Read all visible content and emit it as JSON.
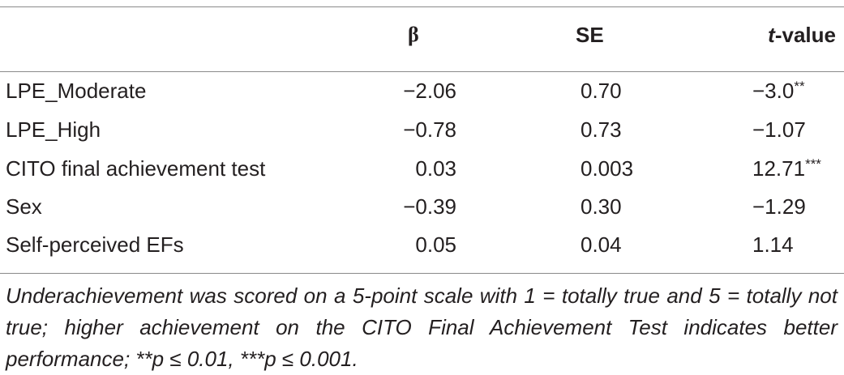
{
  "table": {
    "headers": {
      "beta": "β",
      "se": "SE",
      "t_italic": "t",
      "t_rest": "-value"
    },
    "rows": [
      {
        "label": "LPE_Moderate",
        "beta": "−2.06",
        "se": "0.70",
        "t": "−3.0",
        "sig": "**"
      },
      {
        "label": "LPE_High",
        "beta": "−0.78",
        "se": "0.73",
        "t": "−1.07",
        "sig": ""
      },
      {
        "label": "CITO final achievement test",
        "beta": "0.03",
        "se": "0.003",
        "t": "12.71",
        "sig": "***"
      },
      {
        "label": "Sex",
        "beta": "−0.39",
        "se": "0.30",
        "t": "−1.29",
        "sig": ""
      },
      {
        "label": "Self-perceived EFs",
        "beta": "0.05",
        "se": "0.04",
        "t": "1.14",
        "sig": ""
      }
    ],
    "note": "Underachievement was scored on a 5-point scale with 1 = totally true and 5 = totally not true; higher achievement on the CITO Final Achievement Test indicates better performance; **p ≤ 0.01, ***p ≤ 0.001."
  }
}
